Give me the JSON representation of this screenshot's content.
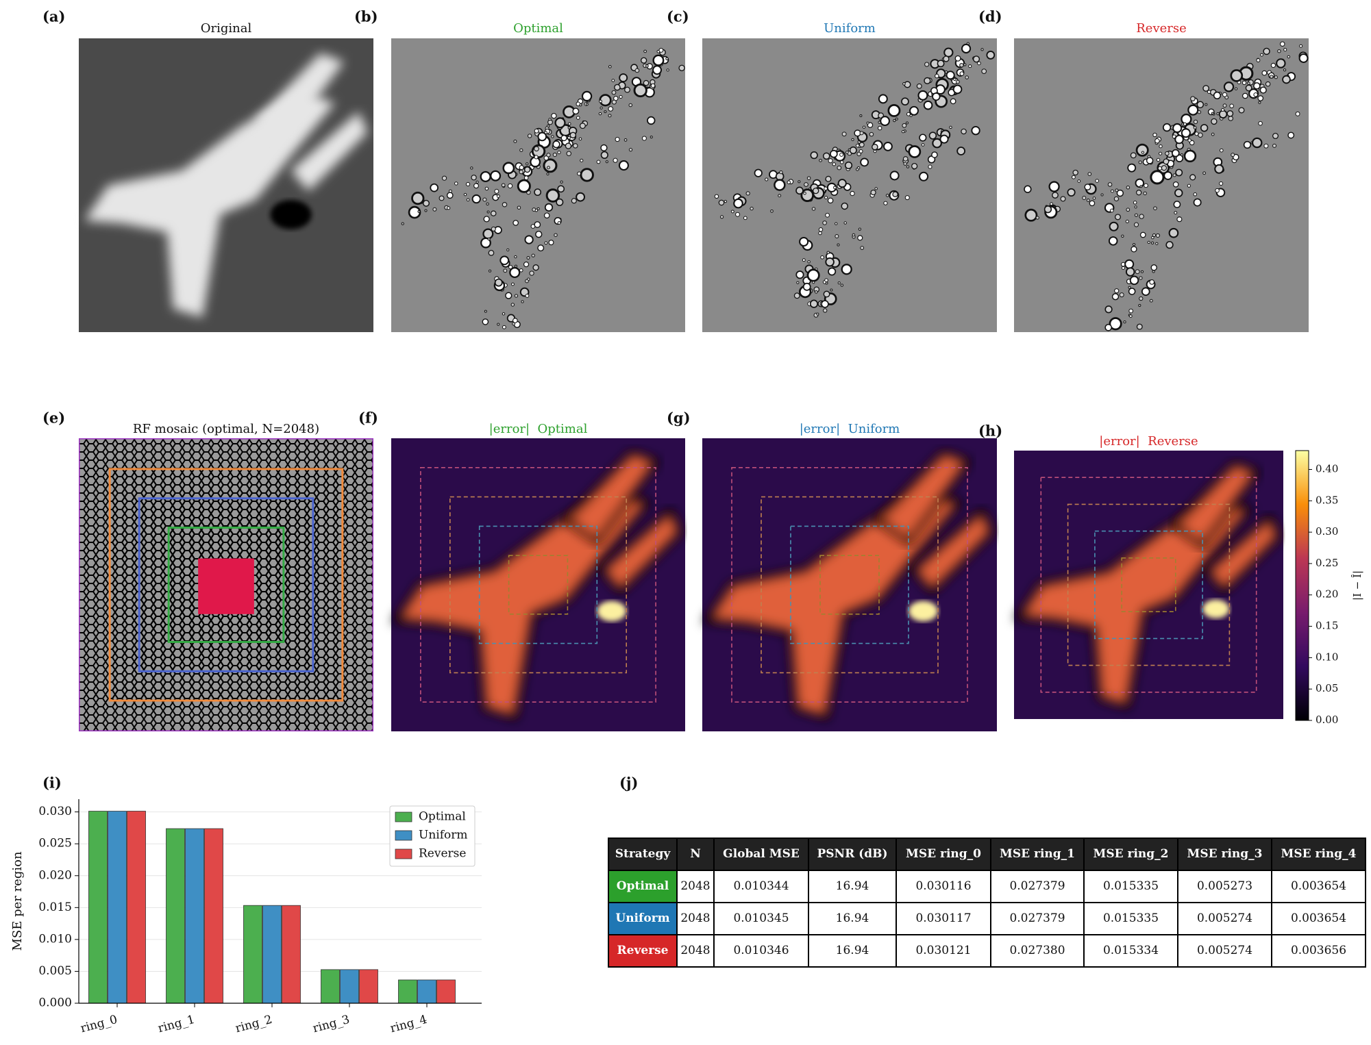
{
  "panels": [
    {
      "label": "(a)",
      "title": "Original",
      "color": "#111111"
    },
    {
      "label": "(b)",
      "title": "Optimal",
      "color": "#2ca02c"
    },
    {
      "label": "(c)",
      "title": "Uniform",
      "color": "#1f77b4"
    },
    {
      "label": "(d)",
      "title": "Reverse",
      "color": "#d62728"
    },
    {
      "label": "(e)",
      "title": "RF mosaic (optimal, N=2048)",
      "color": "#111111"
    },
    {
      "label": "(f)",
      "title": "|error|  Optimal",
      "color": "#2ca02c"
    },
    {
      "label": "(g)",
      "title": "|error|  Uniform",
      "color": "#1f77b4"
    },
    {
      "label": "(h)",
      "title": "|error|  Reverse",
      "color": "#d62728"
    }
  ],
  "colorbar": {
    "label": "|I − Î|",
    "clim": [
      0,
      0.43
    ],
    "ticks": [
      {
        "value": 0,
        "label": "0.00"
      },
      0.05,
      {
        "value": 0.1,
        "label": "0.10"
      },
      0.15,
      {
        "value": 0.2,
        "label": "0.20"
      },
      0.25,
      {
        "value": 0.3,
        "label": "0.30"
      },
      0.35,
      {
        "value": 0.4,
        "label": "0.40"
      }
    ]
  },
  "chart_data": {
    "type": "bar",
    "label": "(i)",
    "ylabel": "MSE per region",
    "categories": [
      "ring_0",
      "ring_1",
      "ring_2",
      "ring_3",
      "ring_4"
    ],
    "series": [
      {
        "name": "Optimal",
        "color": "#4caf4f",
        "values": [
          0.030116,
          0.027379,
          0.015335,
          0.005273,
          0.003654
        ]
      },
      {
        "name": "Uniform",
        "color": "#3f8fc4",
        "values": [
          0.030117,
          0.027379,
          0.015335,
          0.005274,
          0.003654
        ]
      },
      {
        "name": "Reverse",
        "color": "#e04848",
        "values": [
          0.030121,
          0.02738,
          0.015334,
          0.005274,
          0.003656
        ]
      }
    ],
    "ylim": [
      0,
      0.032
    ],
    "yticks": [
      {
        "value": 0,
        "label": "0.000"
      },
      0.005,
      {
        "value": 0.01,
        "label": "0.010"
      },
      0.015,
      {
        "value": 0.02,
        "label": "0.020"
      },
      0.025,
      {
        "value": 0.03,
        "label": "0.030"
      }
    ],
    "grid": true,
    "legend": "upper right"
  },
  "table": {
    "label": "(j)",
    "header": [
      "Strategy",
      "N",
      "Global MSE",
      "PSNR (dB)",
      "MSE ring_0",
      "MSE ring_1",
      "MSE ring_2",
      "MSE ring_3",
      "MSE ring_4"
    ],
    "row_colors": [
      "#2ca02c",
      "#1f77b4",
      "#d62728"
    ],
    "rows": [
      [
        "Optimal",
        "2048",
        "0.010344",
        "16.94",
        "0.030116",
        "0.027379",
        "0.015335",
        "0.005273",
        "0.003654"
      ],
      [
        "Uniform",
        "2048",
        "0.010345",
        "16.94",
        "0.030117",
        "0.027379",
        "0.015335",
        "0.005274",
        "0.003654"
      ],
      [
        "Reverse",
        "2048",
        "0.010346",
        "16.94",
        "0.030121",
        "0.027380",
        "0.015334",
        "0.005274",
        "0.003656"
      ]
    ]
  }
}
